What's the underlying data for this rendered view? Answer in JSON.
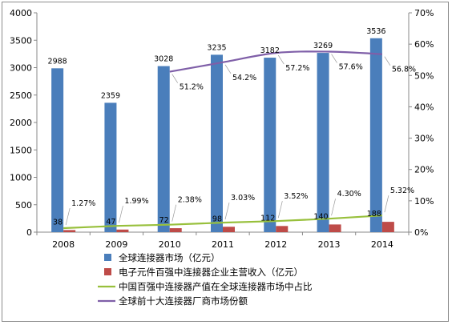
{
  "chart_data": {
    "type": "bar",
    "categories": [
      "2008",
      "2009",
      "2010",
      "2011",
      "2012",
      "2013",
      "2014"
    ],
    "ylim": [
      0,
      4000
    ],
    "y_ticks": [
      "0",
      "500",
      "1000",
      "1500",
      "2000",
      "2500",
      "3000",
      "3500",
      "4000"
    ],
    "y2lim": [
      0,
      70
    ],
    "y2_ticks": [
      "0%",
      "10%",
      "20%",
      "30%",
      "40%",
      "50%",
      "60%",
      "70%"
    ],
    "legend_position": "bottom-left",
    "grid": false,
    "series": [
      {
        "name": "全球连接器市场（亿元）",
        "kind": "bar",
        "axis": "left",
        "color": "#4a7ebb",
        "values": [
          2988,
          2359,
          3028,
          3235,
          3182,
          3269,
          3536
        ],
        "labels": [
          "2988",
          "2359",
          "3028",
          "3235",
          "3182",
          "3269",
          "3536"
        ]
      },
      {
        "name": "电子元件百强中连接器企业主营收入（亿元）",
        "kind": "bar",
        "axis": "left",
        "color": "#be4b48",
        "values": [
          38,
          47,
          72,
          98,
          112,
          140,
          188
        ],
        "labels": [
          "38",
          "47",
          "72",
          "98",
          "112",
          "140",
          "188"
        ]
      },
      {
        "name": "中国百强中连接器产值在全球连接器市场中占比",
        "kind": "line",
        "axis": "right",
        "color": "#98c03c",
        "values": [
          1.27,
          1.99,
          2.38,
          3.03,
          3.52,
          4.3,
          5.32
        ],
        "labels": [
          "1.27%",
          "1.99%",
          "2.38%",
          "3.03%",
          "3.52%",
          "4.30%",
          "5.32%"
        ]
      },
      {
        "name": "全球前十大连接器厂商市场份额",
        "kind": "line",
        "axis": "right",
        "color": "#7f5fa8",
        "x": [
          "2010",
          "2011",
          "2012",
          "2013",
          "2014"
        ],
        "values": [
          51.2,
          54.2,
          57.2,
          57.6,
          56.8
        ],
        "labels": [
          "51.2%",
          "54.2%",
          "57.2%",
          "57.6%",
          "56.8%"
        ]
      }
    ]
  }
}
